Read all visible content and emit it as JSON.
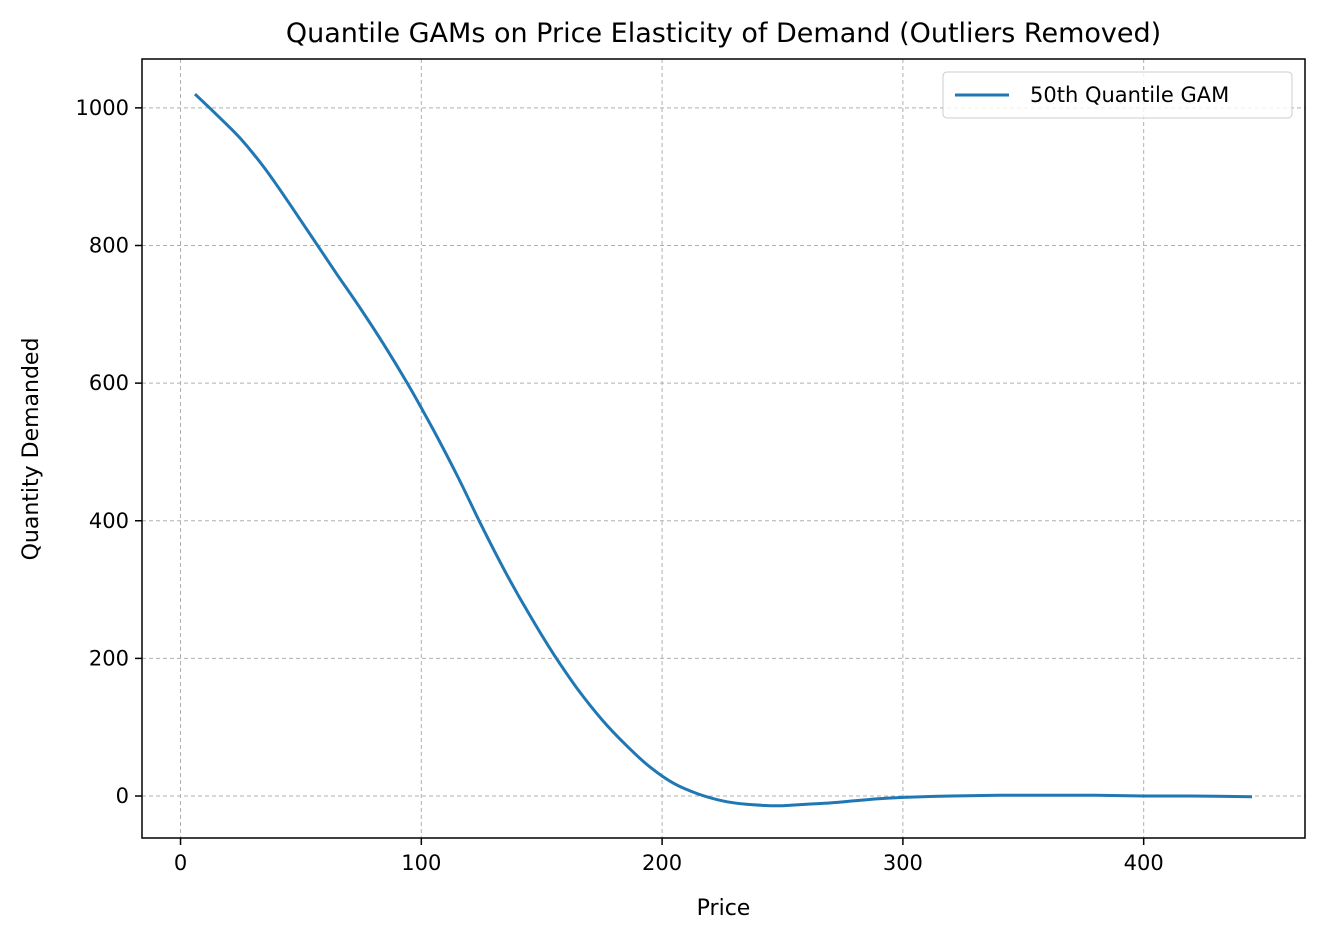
{
  "chart_data": {
    "type": "line",
    "title": "Quantile GAMs on Price Elasticity of Demand (Outliers Removed)",
    "xlabel": "Price",
    "ylabel": "Quantity Demanded",
    "xlim": [
      -16,
      467
    ],
    "ylim": [
      -61,
      1071
    ],
    "xticks": [
      0,
      100,
      200,
      300,
      400
    ],
    "yticks": [
      0,
      200,
      400,
      600,
      800,
      1000
    ],
    "grid": true,
    "grid_style": "dashed",
    "legend_position": "upper right",
    "series": [
      {
        "name": "50th Quantile GAM",
        "color": "#1f77b4",
        "x": [
          6,
          15,
          25,
          35,
          45,
          55,
          65,
          75,
          85,
          95,
          105,
          115,
          125,
          135,
          145,
          155,
          165,
          175,
          185,
          195,
          205,
          215,
          225,
          235,
          245,
          250,
          260,
          270,
          280,
          290,
          300,
          320,
          340,
          360,
          380,
          400,
          420,
          445
        ],
        "y": [
          1020,
          990,
          955,
          912,
          862,
          810,
          758,
          707,
          653,
          595,
          532,
          465,
          393,
          325,
          263,
          206,
          155,
          111,
          74,
          42,
          18,
          3,
          -7,
          -12,
          -14,
          -14,
          -12,
          -10,
          -7,
          -4,
          -2,
          0,
          1,
          1,
          1,
          0,
          0,
          -1
        ]
      }
    ]
  }
}
